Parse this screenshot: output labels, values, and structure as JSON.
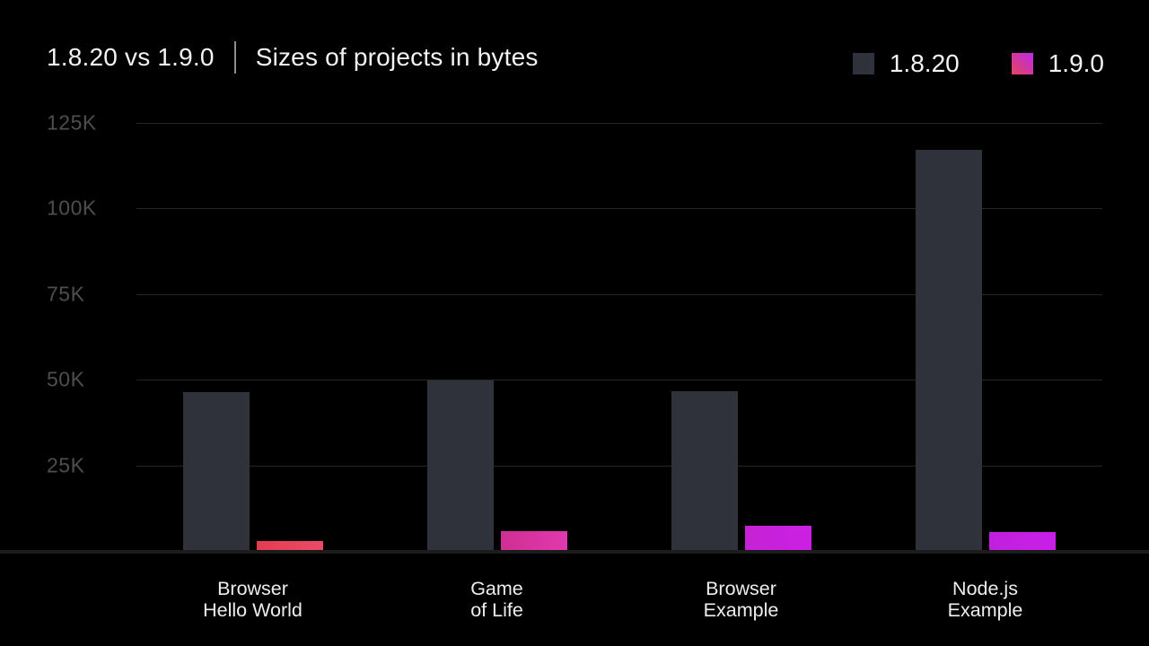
{
  "header": {
    "title_left": "1.8.20 vs 1.9.0",
    "title_right": "Sizes of projects in bytes"
  },
  "legend": {
    "items": [
      {
        "label": "1.8.20",
        "color": "#2f323a"
      },
      {
        "label": "1.9.0",
        "gradient": [
          "#e8435c",
          "#bb2be8"
        ]
      }
    ]
  },
  "chart_data": {
    "type": "bar",
    "title": "1.8.20 vs 1.9.0 | Sizes of projects in bytes",
    "unit": "bytes",
    "categories": [
      [
        "Browser",
        "Hello World"
      ],
      [
        "Game",
        "of Life"
      ],
      [
        "Browser",
        "Example"
      ],
      [
        "Node.js",
        "Example"
      ]
    ],
    "series": [
      {
        "name": "1.8.20",
        "color": "#2f323a",
        "values": [
          46400,
          49800,
          46600,
          117100
        ]
      },
      {
        "name": "1.9.0",
        "values": [
          3000,
          5800,
          7300,
          5500
        ],
        "bar_gradients": [
          [
            "#e23c4f",
            "#ec4b68"
          ],
          [
            "#cf2f93",
            "#e139ae"
          ],
          [
            "#c622d4",
            "#cc1fe5"
          ],
          [
            "#c020dd",
            "#c91fe9"
          ]
        ]
      }
    ],
    "yticks": [
      {
        "label": "25K",
        "value": 25000
      },
      {
        "label": "50K",
        "value": 50000
      },
      {
        "label": "75K",
        "value": 75000
      },
      {
        "label": "100K",
        "value": 100000
      },
      {
        "label": "125K",
        "value": 125000
      }
    ],
    "ylim": [
      0,
      125000
    ],
    "grid": true,
    "legend_position": "top-right"
  }
}
